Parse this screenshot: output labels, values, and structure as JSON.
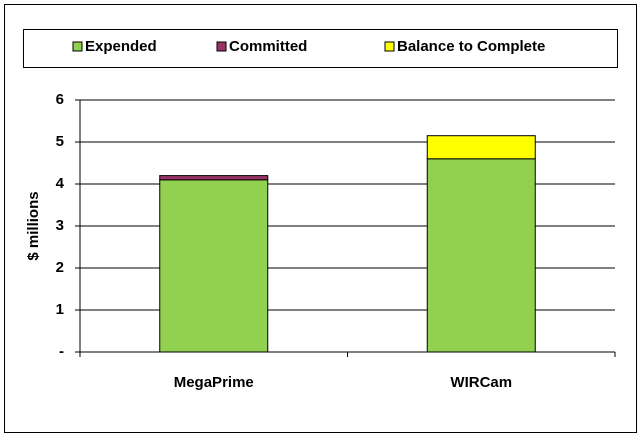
{
  "chart_data": {
    "type": "bar",
    "stacked": true,
    "y_label": "$ millions",
    "categories": [
      "MegaPrime",
      "WIRCam"
    ],
    "series": [
      {
        "name": "Expended",
        "color": "#92d050",
        "values": [
          4.1,
          4.6
        ]
      },
      {
        "name": "Committed",
        "color": "#993366",
        "values": [
          0.1,
          0
        ]
      },
      {
        "name": "Balance to Complete",
        "color": "#ffff00",
        "values": [
          0,
          0.55
        ]
      }
    ],
    "ylim": [
      0,
      6
    ],
    "yticks": [
      {
        "value": 0,
        "label": "-"
      },
      1,
      2,
      3,
      4,
      5,
      6
    ],
    "grid": true,
    "legend": "top"
  }
}
